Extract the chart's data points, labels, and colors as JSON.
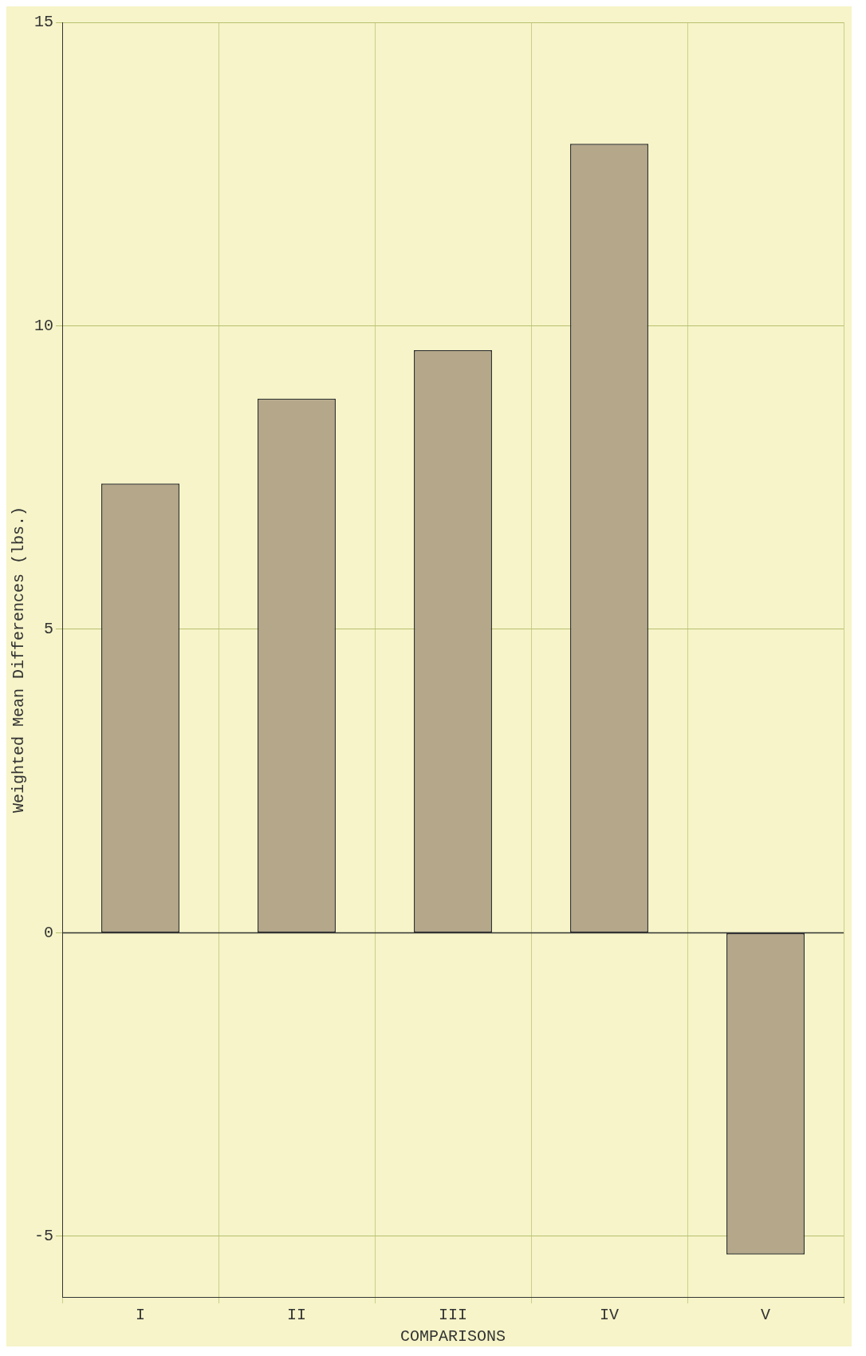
{
  "chart_data": {
    "type": "bar",
    "xlabel": "COMPARISONS",
    "ylabel": "Weighted Mean Differences (lbs.)",
    "categories": [
      "I",
      "II",
      "III",
      "IV",
      "V"
    ],
    "values": [
      7.4,
      8.8,
      9.6,
      13.0,
      -5.3
    ],
    "color": "#b5a88a",
    "ylim": [
      -6,
      15
    ],
    "yticks": [
      -5,
      0,
      5,
      10,
      15
    ],
    "grid": true,
    "legend": false
  }
}
